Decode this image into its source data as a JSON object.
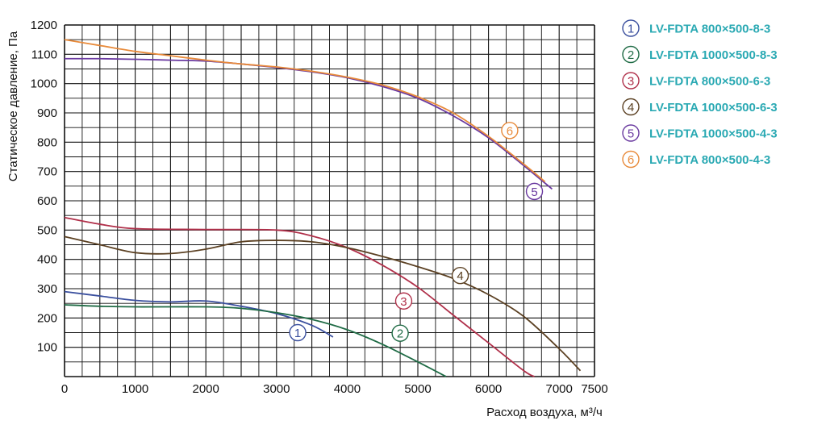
{
  "chart_data": {
    "type": "line",
    "xlabel": "Расход воздуха, м³/ч",
    "ylabel": "Статическое давление, Па",
    "xlim": [
      0,
      7500
    ],
    "ylim": [
      0,
      1200
    ],
    "x_ticks": [
      0,
      1000,
      2000,
      3000,
      4000,
      5000,
      6000,
      7000,
      7500
    ],
    "y_ticks": [
      100,
      200,
      300,
      400,
      500,
      600,
      700,
      800,
      900,
      1000,
      1100,
      1200
    ],
    "grid": true,
    "legend_position": "right",
    "series": [
      {
        "marker": "1",
        "name": "LV-FDTA 800×500-8-3",
        "color": "#3a4f9e",
        "points": [
          [
            0,
            290
          ],
          [
            500,
            275
          ],
          [
            1000,
            260
          ],
          [
            1500,
            255
          ],
          [
            2000,
            258
          ],
          [
            2500,
            240
          ],
          [
            3000,
            215
          ],
          [
            3500,
            175
          ],
          [
            3800,
            135
          ]
        ]
      },
      {
        "marker": "2",
        "name": "LV-FDTA 1000×500-8-3",
        "color": "#1f6b45",
        "points": [
          [
            0,
            245
          ],
          [
            500,
            240
          ],
          [
            1000,
            238
          ],
          [
            2000,
            238
          ],
          [
            2500,
            233
          ],
          [
            3000,
            218
          ],
          [
            3500,
            195
          ],
          [
            4000,
            160
          ],
          [
            4500,
            110
          ],
          [
            5000,
            50
          ],
          [
            5400,
            0
          ]
        ]
      },
      {
        "marker": "3",
        "name": "LV-FDTA 800×500-6-3",
        "color": "#b0304a",
        "points": [
          [
            0,
            543
          ],
          [
            500,
            520
          ],
          [
            1000,
            505
          ],
          [
            2000,
            502
          ],
          [
            3000,
            500
          ],
          [
            3500,
            480
          ],
          [
            4000,
            440
          ],
          [
            4500,
            380
          ],
          [
            5000,
            305
          ],
          [
            5500,
            210
          ],
          [
            6000,
            115
          ],
          [
            6500,
            20
          ],
          [
            6650,
            0
          ]
        ]
      },
      {
        "marker": "4",
        "name": "LV-FDTA 1000×500-6-3",
        "color": "#5b4022",
        "points": [
          [
            0,
            478
          ],
          [
            500,
            450
          ],
          [
            1000,
            423
          ],
          [
            1500,
            420
          ],
          [
            2000,
            435
          ],
          [
            2500,
            460
          ],
          [
            3000,
            465
          ],
          [
            3500,
            460
          ],
          [
            4000,
            440
          ],
          [
            4500,
            410
          ],
          [
            5000,
            375
          ],
          [
            5500,
            335
          ],
          [
            6000,
            280
          ],
          [
            6500,
            205
          ],
          [
            7000,
            95
          ],
          [
            7300,
            20
          ]
        ]
      },
      {
        "marker": "5",
        "name": "LV-FDTA 1000×500-4-3",
        "color": "#6a3aa0",
        "points": [
          [
            0,
            1085
          ],
          [
            500,
            1085
          ],
          [
            1000,
            1083
          ],
          [
            1500,
            1080
          ],
          [
            2000,
            1077
          ],
          [
            2500,
            1067
          ],
          [
            3000,
            1055
          ],
          [
            3500,
            1040
          ],
          [
            4000,
            1020
          ],
          [
            4500,
            990
          ],
          [
            5000,
            950
          ],
          [
            5500,
            890
          ],
          [
            6000,
            815
          ],
          [
            6500,
            720
          ],
          [
            6900,
            640
          ]
        ]
      },
      {
        "marker": "6",
        "name": "LV-FDTA 800×500-4-3",
        "color": "#e88a3a",
        "points": [
          [
            0,
            1150
          ],
          [
            500,
            1130
          ],
          [
            1000,
            1110
          ],
          [
            1500,
            1095
          ],
          [
            2000,
            1080
          ],
          [
            2500,
            1067
          ],
          [
            3000,
            1057
          ],
          [
            3500,
            1042
          ],
          [
            4000,
            1022
          ],
          [
            4500,
            995
          ],
          [
            5000,
            955
          ],
          [
            5500,
            900
          ],
          [
            6000,
            820
          ],
          [
            6500,
            725
          ],
          [
            6800,
            665
          ]
        ]
      }
    ],
    "curve_markers": [
      {
        "label": "1",
        "x": 3300,
        "y": 150
      },
      {
        "label": "2",
        "x": 4750,
        "y": 148
      },
      {
        "label": "3",
        "x": 4800,
        "y": 258
      },
      {
        "label": "4",
        "x": 5600,
        "y": 345
      },
      {
        "label": "5",
        "x": 6650,
        "y": 632
      },
      {
        "label": "6",
        "x": 6300,
        "y": 840
      }
    ]
  }
}
